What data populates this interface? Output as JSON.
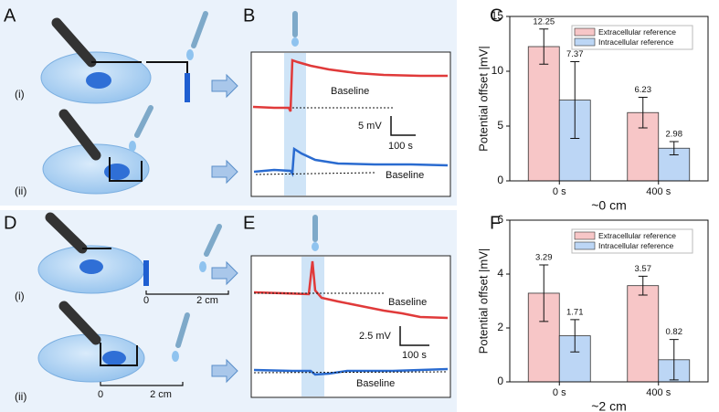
{
  "panel_labels": [
    "A",
    "B",
    "C",
    "D",
    "E",
    "F"
  ],
  "steps": [
    "(i)",
    "(ii)",
    "(i)",
    "(ii)"
  ],
  "baselines": [
    "Baseline",
    "Baseline",
    "Baseline",
    "Baseline"
  ],
  "scale_bars": [
    "5 mV",
    "100 s",
    "2.5 mV",
    "100 s"
  ],
  "distance_scales": [
    "0",
    "2 cm",
    "0",
    "2 cm"
  ],
  "chart_data": [
    {
      "type": "bar",
      "xlabel": "~0 cm",
      "ylabel": "Potential offset |mV|",
      "categories": [
        "0 s",
        "400 s"
      ],
      "series": [
        {
          "name": "Extracellular reference",
          "color": "#f7c6c7",
          "values": [
            12.25,
            6.23
          ],
          "errors": [
            1.6,
            1.4
          ]
        },
        {
          "name": "Intracellular reference",
          "color": "#bcd6f5",
          "values": [
            7.37,
            2.98
          ],
          "errors": [
            3.5,
            0.6
          ]
        }
      ],
      "ylim": [
        0,
        15
      ],
      "yticks": [
        0,
        5,
        10,
        15
      ],
      "legend": "upper right"
    },
    {
      "type": "bar",
      "xlabel": "~2 cm",
      "ylabel": "Potential offset |mV|",
      "categories": [
        "0 s",
        "400 s"
      ],
      "series": [
        {
          "name": "Extracellular reference",
          "color": "#f7c6c7",
          "values": [
            3.29,
            3.57
          ],
          "errors": [
            1.05,
            0.35
          ]
        },
        {
          "name": "Intracellular reference",
          "color": "#bcd6f5",
          "values": [
            1.71,
            0.82
          ],
          "errors": [
            0.6,
            0.75
          ]
        }
      ],
      "ylim": [
        0,
        6
      ],
      "yticks": [
        0,
        2,
        4,
        6
      ],
      "legend": "upper right"
    }
  ]
}
